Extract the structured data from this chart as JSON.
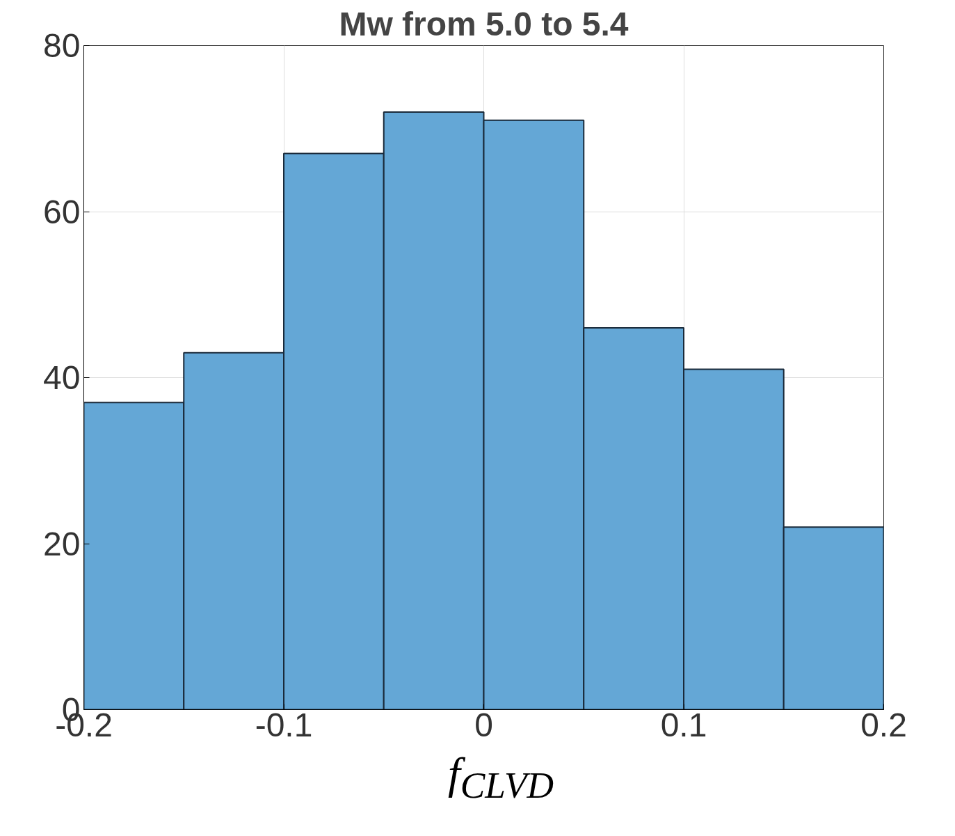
{
  "chart_data": {
    "type": "histogram",
    "title": "Mw from 5.0 to 5.4",
    "xlabel": "f$_{CLVD}$",
    "bins": [
      -0.2,
      -0.15,
      -0.1,
      -0.05,
      0,
      0.05,
      0.1,
      0.15,
      0.2
    ],
    "values": [
      37,
      43,
      67,
      72,
      71,
      46,
      41,
      22
    ],
    "color": "#64a7d6",
    "xlim": [
      -0.2,
      0.2
    ],
    "xticks": [
      -0.2,
      -0.1,
      0,
      0.1,
      0.2
    ],
    "ylim": [
      0,
      80
    ],
    "yticks": [
      0,
      20,
      40,
      60,
      80
    ],
    "grid": true
  }
}
